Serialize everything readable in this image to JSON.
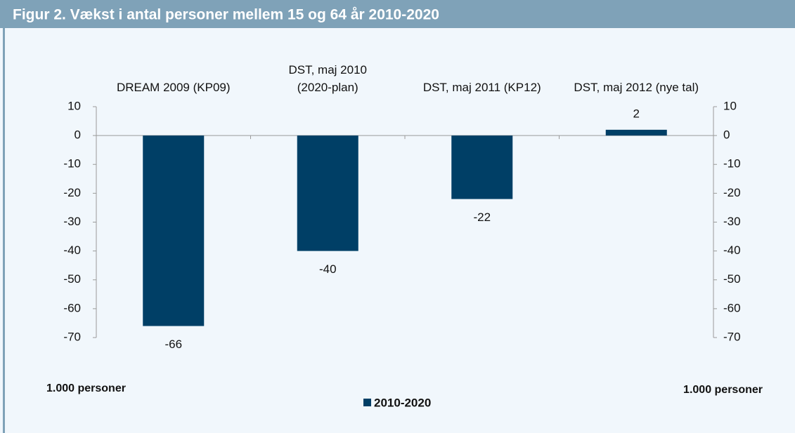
{
  "chart_data": {
    "type": "bar",
    "title": "Figur 2. Vækst i antal personer mellem 15 og 64 år 2010-2020",
    "categories": [
      "DREAM 2009 (KP09)",
      "DST, maj 2010\n(2020-plan)",
      "DST, maj 2011 (KP12)",
      "DST, maj 2012 (nye tal)"
    ],
    "series": [
      {
        "name": "2010-2020",
        "color": "#003f66",
        "values": [
          -66,
          -40,
          -22,
          2
        ]
      }
    ],
    "ylim": [
      -70,
      10
    ],
    "yticks": [
      10,
      0,
      -10,
      -20,
      -30,
      -40,
      -50,
      -60,
      -70
    ],
    "y2lim": [
      -70,
      10
    ],
    "y2ticks": [
      10,
      0,
      -10,
      -20,
      -30,
      -40,
      -50,
      -60,
      -70
    ],
    "ylabel": "1.000 personer",
    "y2label": "1.000 personer",
    "legend": "bottom",
    "grid": false
  }
}
